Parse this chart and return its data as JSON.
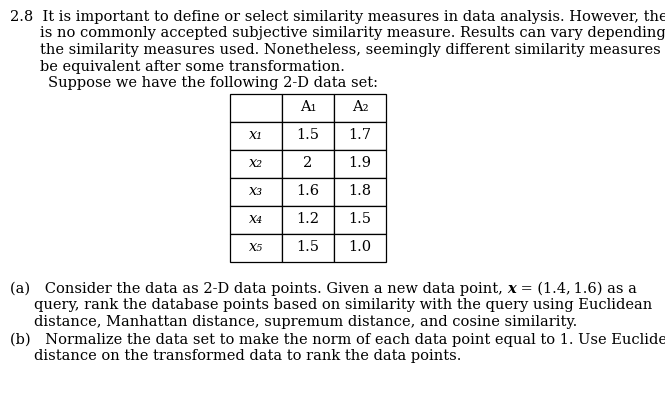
{
  "problem_number": "2.8",
  "intro_line1": "It is important to define or select similarity measures in data analysis. However, there",
  "intro_line2": "is no commonly accepted subjective similarity measure. Results can vary depending on",
  "intro_line3": "the similarity measures used. Nonetheless, seemingly different similarity measures may",
  "intro_line4": "be equivalent after some transformation.",
  "suppose_line": "Suppose we have the following 2-D data set:",
  "table_headers": [
    "",
    "A₁",
    "A₂"
  ],
  "table_rows": [
    [
      "x₁",
      "1.5",
      "1.7"
    ],
    [
      "x₂",
      "2",
      "1.9"
    ],
    [
      "x₃",
      "1.6",
      "1.8"
    ],
    [
      "x₄",
      "1.2",
      "1.5"
    ],
    [
      "x₅",
      "1.5",
      "1.0"
    ]
  ],
  "part_a_line1_pre": "(a) Consider the data as 2-D data points. Given a new data point, ",
  "part_a_bold": "x",
  "part_a_line1_post": " = (1.4, 1.6) as a",
  "part_a_line2": "query, rank the database points based on similarity with the query using Euclidean",
  "part_a_line3": "distance, Manhattan distance, supremum distance, and cosine similarity.",
  "part_b_line1": "(b) Normalize the data set to make the norm of each data point equal to 1. Use Euclidean",
  "part_b_line2": "distance on the transformed data to rank the data points.",
  "bg_color": "#ffffff",
  "text_color": "#000000"
}
